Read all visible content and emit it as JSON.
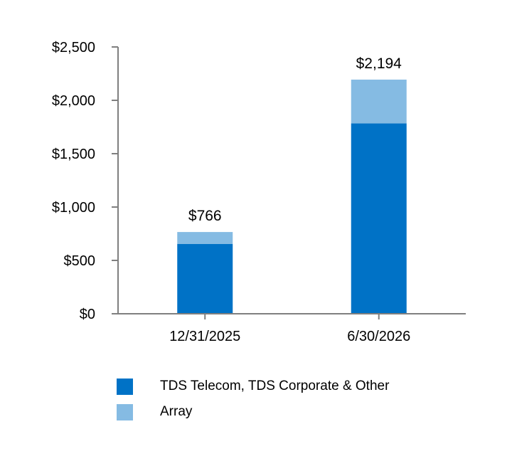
{
  "chart_data": {
    "type": "bar",
    "stacked": true,
    "categories": [
      "12/31/2025",
      "6/30/2026"
    ],
    "series": [
      {
        "name": "TDS Telecom, TDS Corporate & Other",
        "color": "#0072c6",
        "values": [
          655,
          1784
        ]
      },
      {
        "name": "Array",
        "color": "#85bbe3",
        "values": [
          111,
          410
        ]
      }
    ],
    "totals": [
      "$766",
      "$2,194"
    ],
    "yticks": [
      "$0",
      "$500",
      "$1,000",
      "$1,500",
      "$2,000",
      "$2,500"
    ],
    "ytick_values": [
      0,
      500,
      1000,
      1500,
      2000,
      2500
    ],
    "ylim": [
      0,
      2500
    ],
    "title": "",
    "xlabel": "",
    "ylabel": "",
    "legend_position": "bottom-left",
    "axis_color": "#7f7f7f"
  }
}
